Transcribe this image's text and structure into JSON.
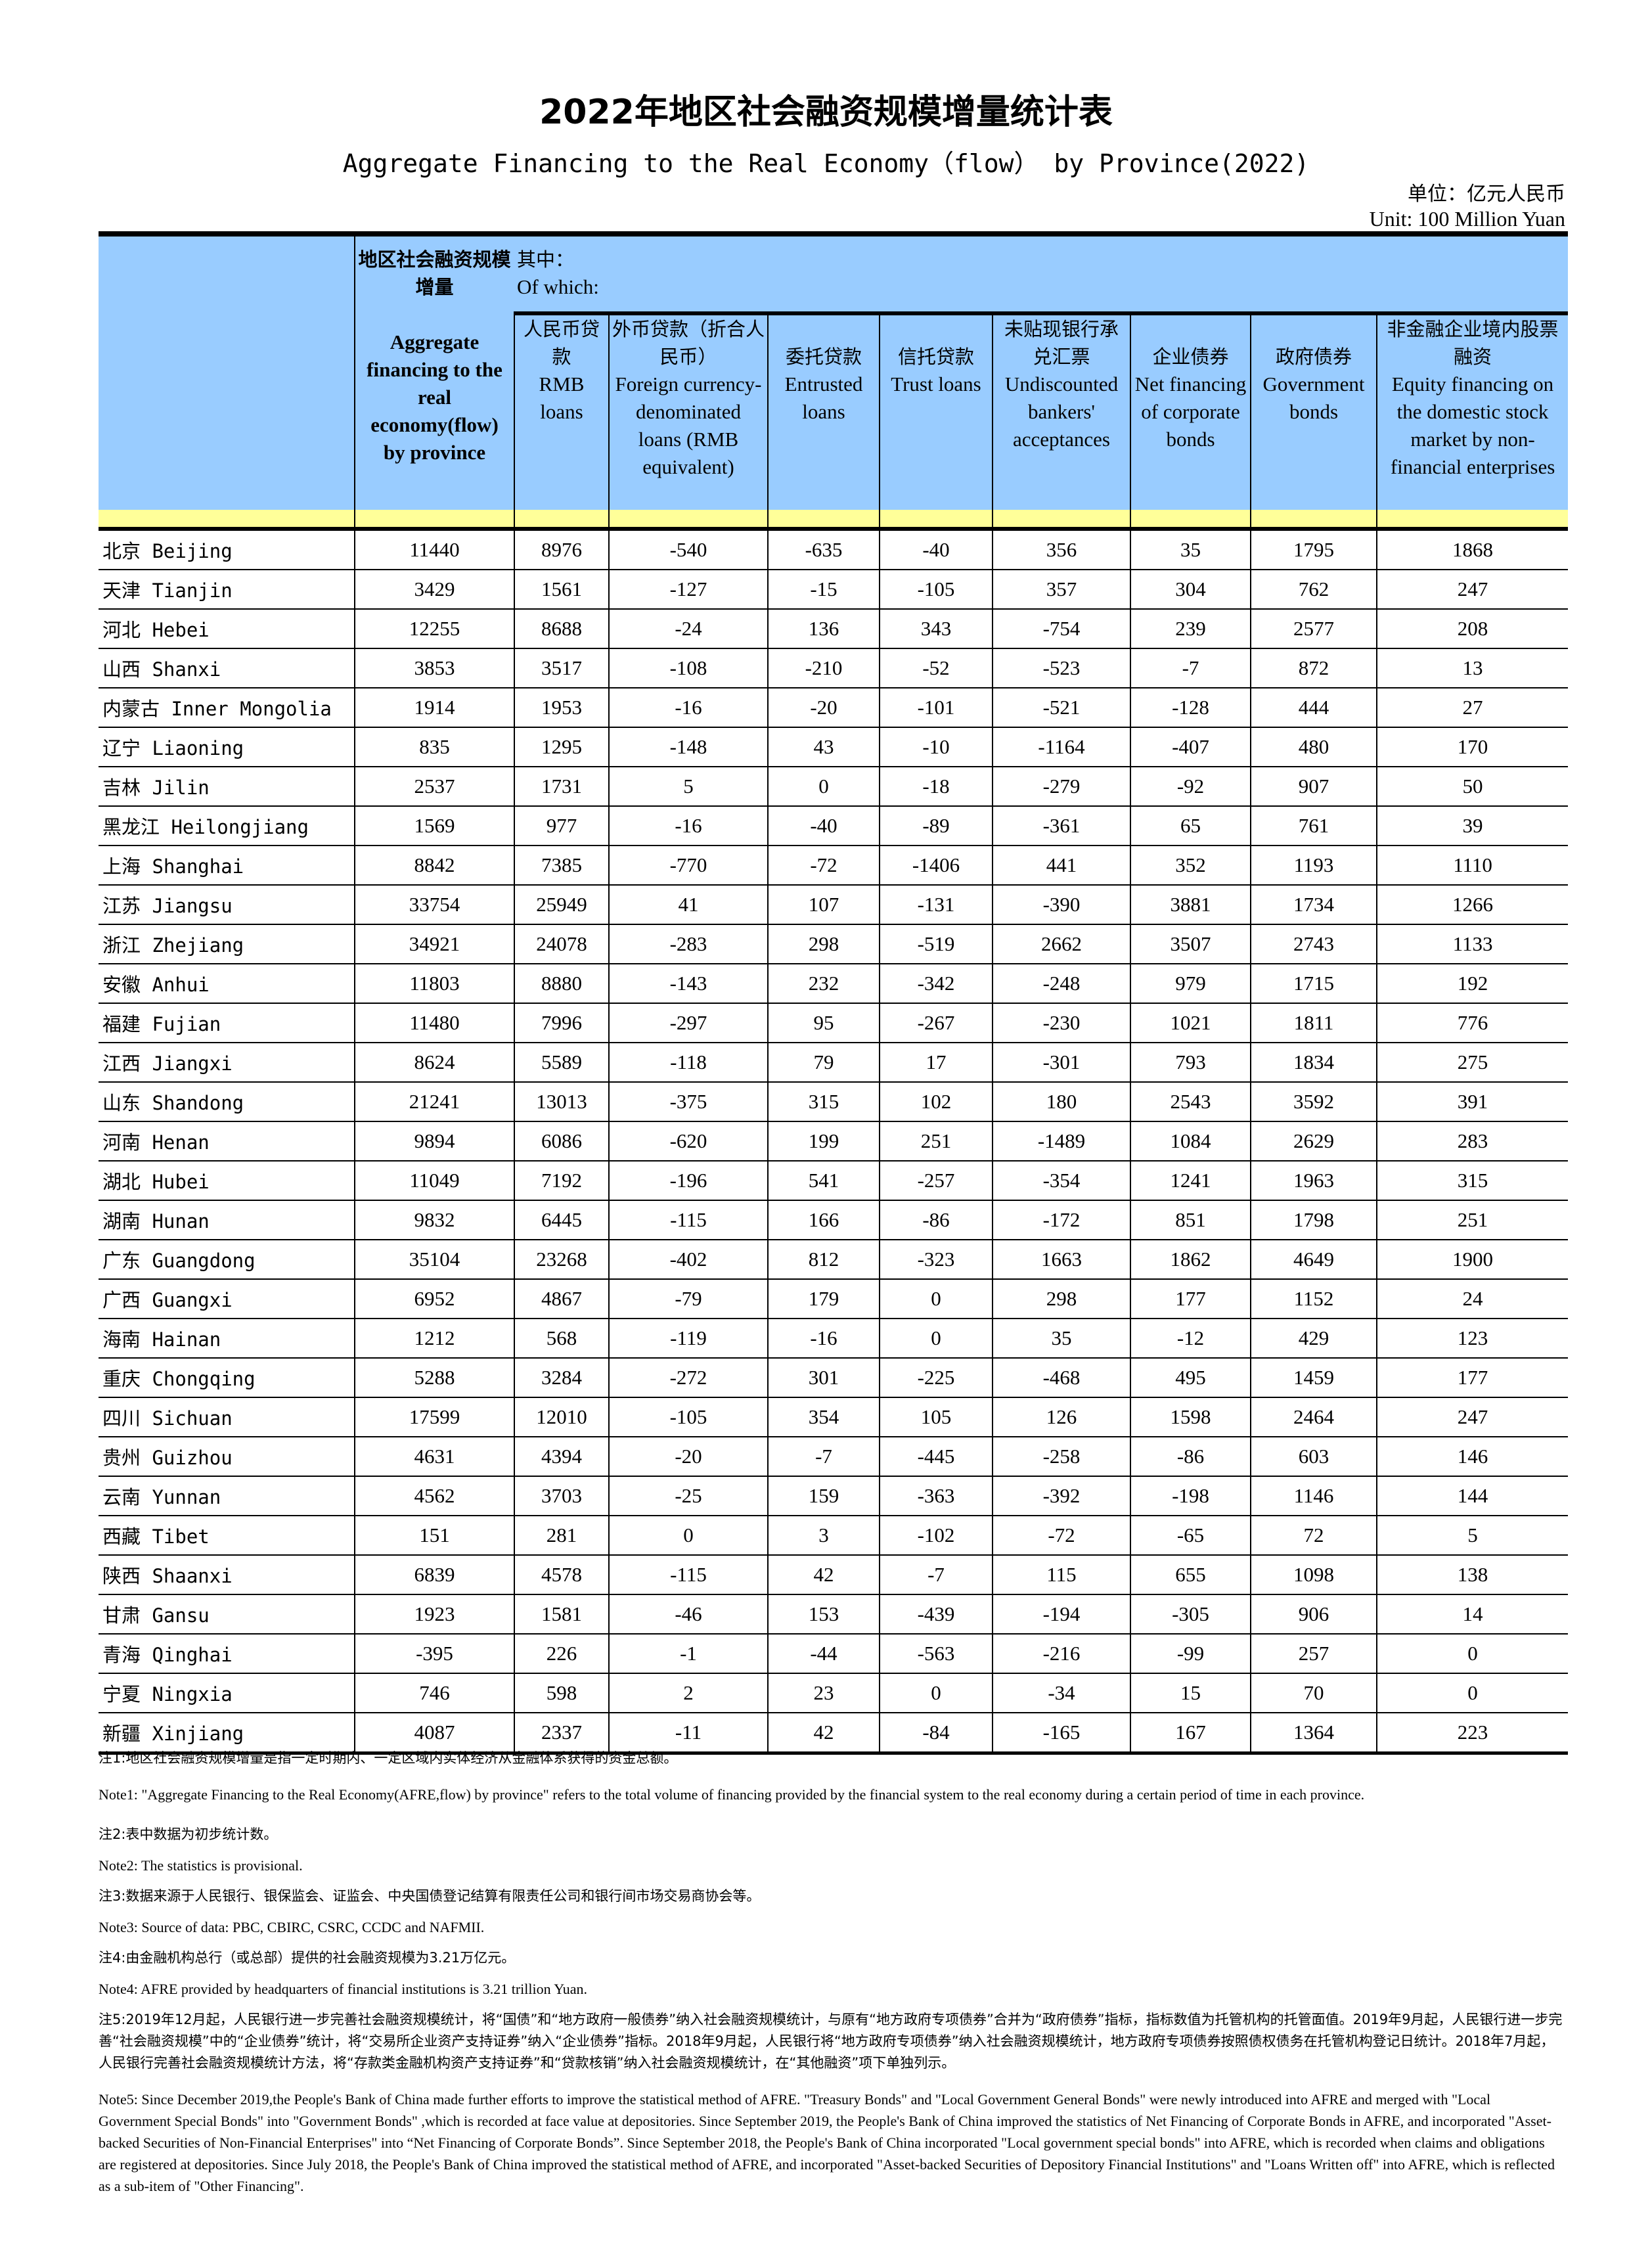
{
  "title": "2022年地区社会融资规模增量统计表",
  "subtitle": "Aggregate Financing to the Real Economy（flow） by Province(2022)",
  "unit_cn": "单位：亿元人民币",
  "unit_en": "Unit: 100 Million Yuan",
  "header": {
    "total_cn": "地区社会融资规模增量",
    "total_en": "Aggregate financing to the real economy(flow) by province",
    "of_which_cn": "其中：",
    "of_which_en": "Of which:",
    "columns": [
      {
        "cn": "人民币贷款",
        "en": "RMB loans"
      },
      {
        "cn": "外币贷款（折合人民币）",
        "en": "Foreign currency-denominated loans (RMB equivalent)"
      },
      {
        "cn": "委托贷款",
        "en": "Entrusted loans"
      },
      {
        "cn": "信托贷款",
        "en": "Trust loans"
      },
      {
        "cn": "未贴现银行承兑汇票",
        "en": "Undiscounted bankers' acceptances"
      },
      {
        "cn": "企业债券",
        "en": "Net financing of corporate bonds"
      },
      {
        "cn": "政府债券",
        "en": "Government bonds"
      },
      {
        "cn": "非金融企业境内股票融资",
        "en": "Equity financing on the domestic stock market by non-financial enterprises"
      }
    ]
  },
  "rows": [
    [
      "北京 Beijing",
      "11440",
      "8976",
      "-540",
      "-635",
      "-40",
      "356",
      "35",
      "1795",
      "1868"
    ],
    [
      "天津 Tianjin",
      "3429",
      "1561",
      "-127",
      "-15",
      "-105",
      "357",
      "304",
      "762",
      "247"
    ],
    [
      "河北 Hebei",
      "12255",
      "8688",
      "-24",
      "136",
      "343",
      "-754",
      "239",
      "2577",
      "208"
    ],
    [
      "山西 Shanxi",
      "3853",
      "3517",
      "-108",
      "-210",
      "-52",
      "-523",
      "-7",
      "872",
      "13"
    ],
    [
      "内蒙古 Inner Mongolia",
      "1914",
      "1953",
      "-16",
      "-20",
      "-101",
      "-521",
      "-128",
      "444",
      "27"
    ],
    [
      "辽宁 Liaoning",
      "835",
      "1295",
      "-148",
      "43",
      "-10",
      "-1164",
      "-407",
      "480",
      "170"
    ],
    [
      "吉林 Jilin",
      "2537",
      "1731",
      "5",
      "0",
      "-18",
      "-279",
      "-92",
      "907",
      "50"
    ],
    [
      "黑龙江 Heilongjiang",
      "1569",
      "977",
      "-16",
      "-40",
      "-89",
      "-361",
      "65",
      "761",
      "39"
    ],
    [
      "上海 Shanghai",
      "8842",
      "7385",
      "-770",
      "-72",
      "-1406",
      "441",
      "352",
      "1193",
      "1110"
    ],
    [
      "江苏 Jiangsu",
      "33754",
      "25949",
      "41",
      "107",
      "-131",
      "-390",
      "3881",
      "1734",
      "1266"
    ],
    [
      "浙江 Zhejiang",
      "34921",
      "24078",
      "-283",
      "298",
      "-519",
      "2662",
      "3507",
      "2743",
      "1133"
    ],
    [
      "安徽 Anhui",
      "11803",
      "8880",
      "-143",
      "232",
      "-342",
      "-248",
      "979",
      "1715",
      "192"
    ],
    [
      "福建 Fujian",
      "11480",
      "7996",
      "-297",
      "95",
      "-267",
      "-230",
      "1021",
      "1811",
      "776"
    ],
    [
      "江西 Jiangxi",
      "8624",
      "5589",
      "-118",
      "79",
      "17",
      "-301",
      "793",
      "1834",
      "275"
    ],
    [
      "山东 Shandong",
      "21241",
      "13013",
      "-375",
      "315",
      "102",
      "180",
      "2543",
      "3592",
      "391"
    ],
    [
      "河南 Henan",
      "9894",
      "6086",
      "-620",
      "199",
      "251",
      "-1489",
      "1084",
      "2629",
      "283"
    ],
    [
      "湖北 Hubei",
      "11049",
      "7192",
      "-196",
      "541",
      "-257",
      "-354",
      "1241",
      "1963",
      "315"
    ],
    [
      "湖南 Hunan",
      "9832",
      "6445",
      "-115",
      "166",
      "-86",
      "-172",
      "851",
      "1798",
      "251"
    ],
    [
      "广东 Guangdong",
      "35104",
      "23268",
      "-402",
      "812",
      "-323",
      "1663",
      "1862",
      "4649",
      "1900"
    ],
    [
      "广西 Guangxi",
      "6952",
      "4867",
      "-79",
      "179",
      "0",
      "298",
      "177",
      "1152",
      "24"
    ],
    [
      "海南 Hainan",
      "1212",
      "568",
      "-119",
      "-16",
      "0",
      "35",
      "-12",
      "429",
      "123"
    ],
    [
      "重庆 Chongqing",
      "5288",
      "3284",
      "-272",
      "301",
      "-225",
      "-468",
      "495",
      "1459",
      "177"
    ],
    [
      "四川 Sichuan",
      "17599",
      "12010",
      "-105",
      "354",
      "105",
      "126",
      "1598",
      "2464",
      "247"
    ],
    [
      "贵州 Guizhou",
      "4631",
      "4394",
      "-20",
      "-7",
      "-445",
      "-258",
      "-86",
      "603",
      "146"
    ],
    [
      "云南 Yunnan",
      "4562",
      "3703",
      "-25",
      "159",
      "-363",
      "-392",
      "-198",
      "1146",
      "144"
    ],
    [
      "西藏 Tibet",
      "151",
      "281",
      "0",
      "3",
      "-102",
      "-72",
      "-65",
      "72",
      "5"
    ],
    [
      "陕西 Shaanxi",
      "6839",
      "4578",
      "-115",
      "42",
      "-7",
      "115",
      "655",
      "1098",
      "138"
    ],
    [
      "甘肃 Gansu",
      "1923",
      "1581",
      "-46",
      "153",
      "-439",
      "-194",
      "-305",
      "906",
      "14"
    ],
    [
      "青海 Qinghai",
      "-395",
      "226",
      "-1",
      "-44",
      "-563",
      "-216",
      "-99",
      "257",
      "0"
    ],
    [
      "宁夏 Ningxia",
      "746",
      "598",
      "2",
      "23",
      "0",
      "-34",
      "15",
      "70",
      "0"
    ],
    [
      "新疆 Xinjiang",
      "4087",
      "2337",
      "-11",
      "42",
      "-84",
      "-165",
      "167",
      "1364",
      "223"
    ]
  ],
  "notes": [
    {
      "lang": "cn",
      "text": "注1:地区社会融资规模增量是指一定时期内、一定区域内实体经济从金融体系获得的资金总额。"
    },
    {
      "lang": "en",
      "text": "Note1: \"Aggregate Financing to the Real Economy(AFRE,flow) by province\" refers to the total volume of financing provided by the financial system to the real economy during a certain period of time in each province."
    },
    {
      "lang": "cn",
      "text": "注2:表中数据为初步统计数。"
    },
    {
      "lang": "en",
      "text": "Note2: The statistics is provisional."
    },
    {
      "lang": "cn",
      "text": "注3:数据来源于人民银行、银保监会、证监会、中央国债登记结算有限责任公司和银行间市场交易商协会等。"
    },
    {
      "lang": "en",
      "text": "Note3: Source of data: PBC, CBIRC, CSRC, CCDC and NAFMII."
    },
    {
      "lang": "cn",
      "text": "注4:由金融机构总行（或总部）提供的社会融资规模为3.21万亿元。"
    },
    {
      "lang": "en",
      "text": "Note4: AFRE provided by headquarters of financial institutions is 3.21 trillion Yuan."
    },
    {
      "lang": "cn",
      "text": "注5:2019年12月起，人民银行进一步完善社会融资规模统计，将“国债”和“地方政府一般债券”纳入社会融资规模统计，与原有“地方政府专项债券”合并为“政府债券”指标，指标数值为托管机构的托管面值。2019年9月起，人民银行进一步完善“社会融资规模”中的“企业债券”统计，将“交易所企业资产支持证券”纳入“企业债券”指标。2018年9月起，人民银行将“地方政府专项债券”纳入社会融资规模统计，地方政府专项债券按照债权债务在托管机构登记日统计。2018年7月起，人民银行完善社会融资规模统计方法，将“存款类金融机构资产支持证券”和“贷款核销”纳入社会融资规模统计，在“其他融资”项下单独列示。"
    },
    {
      "lang": "en",
      "text": "Note5:  Since December 2019,the People's Bank of China made further efforts to improve the statistical method of AFRE. \"Treasury Bonds\" and \"Local Government General Bonds\" were newly introduced into AFRE and merged with  \"Local Government Special Bonds\" into \"Government Bonds\" ,which is recorded at face value at depositories. Since September 2019, the People's Bank of China improved the statistics of Net Financing of Corporate Bonds in AFRE, and incorporated \"Asset-backed Securities of Non-Financial Enterprises\" into “Net Financing of Corporate Bonds”.  Since September 2018, the People's Bank of China incorporated \"Local government special bonds\" into AFRE, which is recorded when claims and obligations are registered at depositories. Since July 2018, the People's Bank of China improved the statistical method of AFRE, and incorporated \"Asset-backed Securities of Depository Financial Institutions\" and \"Loans Written off\" into AFRE, which is reflected as a sub-item of \"Other Financing\"."
    }
  ]
}
